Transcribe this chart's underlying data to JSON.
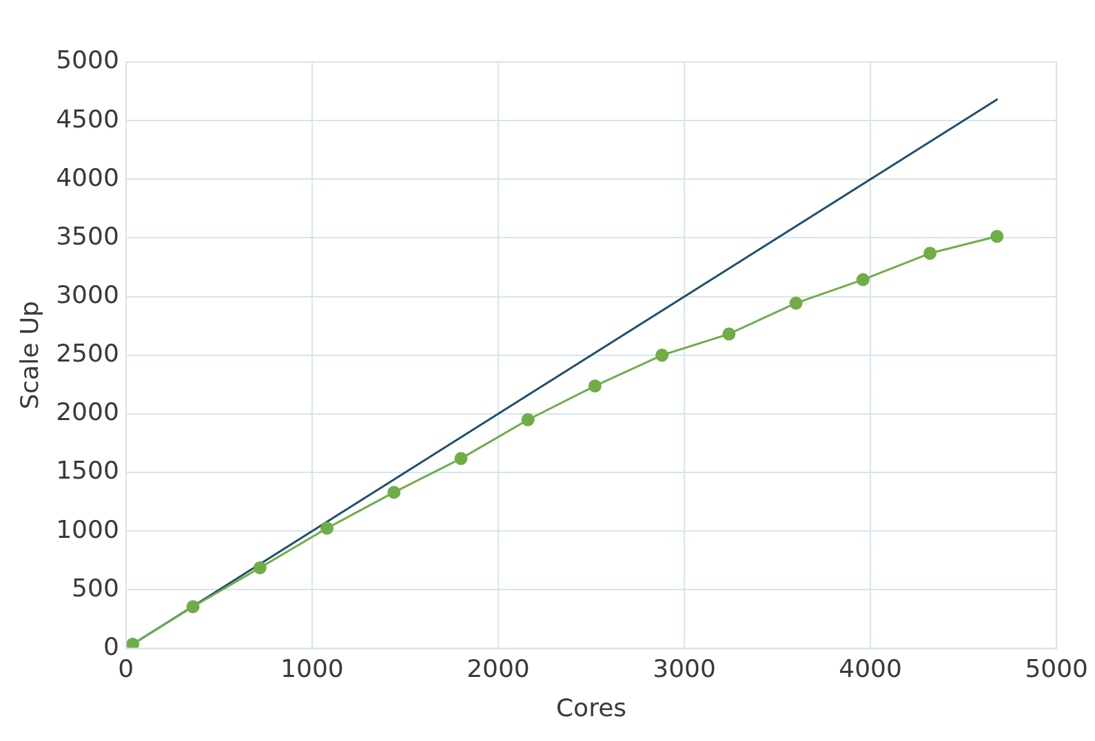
{
  "chart_data": {
    "type": "line",
    "xlabel": "Cores",
    "ylabel": "Scale Up",
    "xlim": [
      0,
      5000
    ],
    "xticks": [
      0,
      1000,
      2000,
      3000,
      4000,
      5000
    ],
    "ylim": [
      0,
      5000
    ],
    "yticks": [
      0,
      500,
      1000,
      1500,
      2000,
      2500,
      3000,
      3500,
      4000,
      4500,
      5000
    ],
    "grid": true,
    "legend": false,
    "series": [
      {
        "type": "line",
        "color": "#1f4e6b",
        "marker": "none",
        "x": [
          36,
          4680
        ],
        "values": [
          36,
          4680
        ]
      },
      {
        "type": "line",
        "color": "#70ad47",
        "marker": "circle",
        "x": [
          36,
          360,
          720,
          1080,
          1440,
          1800,
          2160,
          2520,
          2880,
          3240,
          3600,
          3960,
          4320,
          4680
        ],
        "values": [
          36,
          356,
          688,
          1025,
          1331,
          1619,
          1950,
          2238,
          2500,
          2681,
          2944,
          3144,
          3369,
          3513
        ]
      }
    ]
  }
}
